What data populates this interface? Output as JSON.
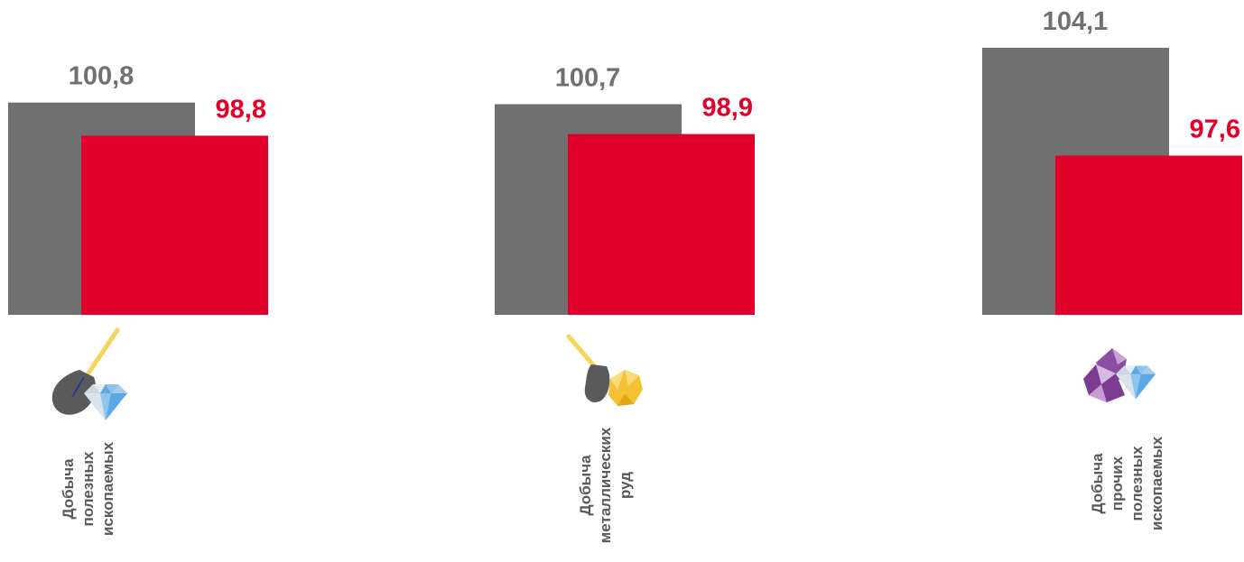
{
  "chart_data": {
    "type": "bar",
    "categories": [
      "Добыча полезных ископаемых",
      "Добыча металлических руд",
      "Добыча прочих полезных ископаемых"
    ],
    "category_lines": [
      [
        "Добыча",
        "полезных",
        "ископаемых"
      ],
      [
        "Добыча",
        "металлических",
        "руд"
      ],
      [
        "Добыча",
        "прочих",
        "полезных",
        "ископаемых"
      ]
    ],
    "series": [
      {
        "values": [
          100.8,
          100.7,
          104.1
        ],
        "labels": [
          "100,8",
          "100,7",
          "104,1"
        ]
      },
      {
        "values": [
          98.8,
          98.9,
          97.6
        ],
        "labels": [
          "98,8",
          "98,9",
          "97,6"
        ]
      }
    ],
    "colors": [
      "#707070",
      "#E0002A"
    ],
    "icons": [
      "shovel-diamond-icon",
      "shovel-gold-ore-icon",
      "gems-icon"
    ],
    "legend": "none",
    "grid": false
  }
}
